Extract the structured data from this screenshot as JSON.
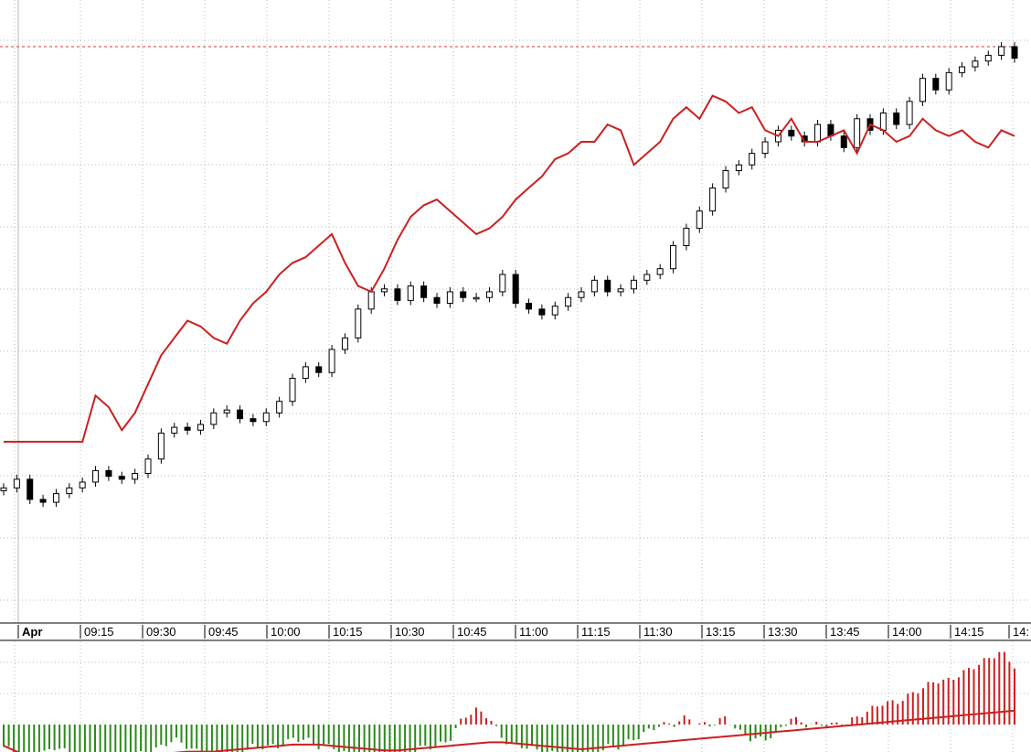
{
  "chart_data": [
    {
      "type": "candlestick",
      "title": "",
      "xlabel": "",
      "ylabel": "",
      "x_tick_labels": [
        "Apr",
        "09:15",
        "09:30",
        "09:45",
        "10:00",
        "10:15",
        "10:30",
        "10:45",
        "11:00",
        "11:15",
        "11:30",
        "13:15",
        "13:30",
        "13:45",
        "14:00",
        "14:15",
        "14:"
      ],
      "grid": true,
      "grid_style": "dotted",
      "y_axis_labels_visible": false,
      "price_level_line": {
        "style": "dashed",
        "value": 98.5,
        "color": "#d23a3a"
      },
      "series": [
        {
          "name": "",
          "kind": "candles",
          "up_color": "#ffffff",
          "down_color": "#000000",
          "values_close": [
            22,
            23.5,
            20,
            19.5,
            21,
            22,
            23,
            25,
            24,
            23.5,
            24.5,
            27,
            31.5,
            32.5,
            32,
            33,
            35,
            35.5,
            34,
            33.5,
            35,
            37,
            41,
            43,
            42,
            46,
            48,
            53,
            56,
            56.5,
            54.5,
            57,
            55,
            54,
            56,
            55,
            55,
            56,
            59,
            54,
            53,
            52,
            53.5,
            55,
            56,
            58,
            56,
            56.5,
            58,
            59,
            60,
            64,
            67,
            70,
            74,
            77,
            78,
            80,
            82,
            84,
            83,
            82,
            85,
            83,
            81,
            86,
            84,
            87,
            85,
            89,
            93,
            91,
            94,
            95,
            96,
            97,
            98.5,
            96.5
          ]
        },
        {
          "name": "",
          "kind": "line",
          "color": "#cc2020",
          "values": [
            30,
            30,
            30,
            30,
            30,
            30,
            30,
            38,
            36,
            32,
            35,
            40,
            45,
            48,
            51,
            50,
            48,
            47,
            51,
            54,
            56,
            59,
            61,
            62,
            64,
            66,
            61,
            57,
            56,
            60,
            65,
            69,
            71,
            72,
            70,
            68,
            66,
            67,
            69,
            72,
            74,
            76,
            79,
            80,
            82,
            82,
            85,
            84,
            78,
            80,
            82,
            86,
            88,
            86,
            90,
            89,
            87,
            88,
            84,
            83,
            86,
            82,
            82,
            83,
            84,
            80,
            85,
            84,
            82,
            83,
            86,
            84,
            83,
            84,
            82,
            81,
            84,
            83
          ]
        }
      ],
      "ylim": [
        0,
        105
      ]
    },
    {
      "type": "bar",
      "title": "",
      "xlabel": "",
      "ylabel": "",
      "grid": true,
      "grid_style": "dotted",
      "positive_color": "#cc2020",
      "negative_color": "#2a8a1a",
      "series": [
        {
          "name": "",
          "kind": "histogram",
          "values": [
            -3,
            -4,
            -4.5,
            -4,
            -3,
            -4,
            -5,
            -5,
            -5.5,
            -5,
            -4,
            -4,
            -3,
            -2,
            -3,
            -4,
            -5,
            -5,
            -4,
            -3,
            -3,
            -3,
            -2,
            -2,
            -3,
            -3,
            -4,
            -4,
            -5,
            -5,
            -5,
            -4,
            -3,
            -3,
            -2,
            1,
            2,
            1,
            -2,
            -3,
            -3,
            -4,
            -4,
            -5,
            -4,
            -4,
            -3,
            -3,
            -2,
            -1,
            0,
            0,
            1,
            0,
            0,
            1,
            -1,
            -2,
            -2,
            -1,
            1,
            0,
            0,
            0,
            0,
            1,
            2,
            3,
            3,
            4,
            5,
            6,
            6,
            7,
            8,
            9,
            10,
            8
          ]
        },
        {
          "name": "",
          "kind": "line",
          "color": "#cc2020",
          "values": [
            -1.5,
            -2,
            -2.5,
            -2.5,
            -2.5,
            -2.5,
            -2.5,
            -2.5,
            -2.5,
            -2.5,
            -2.4,
            -2.3,
            -2.2,
            -2.1,
            -2,
            -2,
            -2,
            -1.9,
            -1.8,
            -1.7,
            -1.6,
            -1.5,
            -1.4,
            -1.4,
            -1.4,
            -1.5,
            -1.6,
            -1.7,
            -1.8,
            -1.9,
            -1.9,
            -1.8,
            -1.7,
            -1.6,
            -1.5,
            -1.4,
            -1.3,
            -1.2,
            -1.2,
            -1.3,
            -1.4,
            -1.5,
            -1.6,
            -1.7,
            -1.8,
            -1.7,
            -1.6,
            -1.5,
            -1.4,
            -1.3,
            -1.2,
            -1.1,
            -1,
            -0.9,
            -0.8,
            -0.7,
            -0.6,
            -0.5,
            -0.4,
            -0.3,
            -0.2,
            -0.1,
            0,
            0.1,
            0.2,
            0.3,
            0.4,
            0.5,
            0.6,
            0.7,
            0.8,
            0.9,
            1,
            1.1,
            1.2,
            1.3,
            1.4,
            1.5
          ]
        }
      ],
      "ylim": [
        -6,
        11
      ]
    }
  ]
}
